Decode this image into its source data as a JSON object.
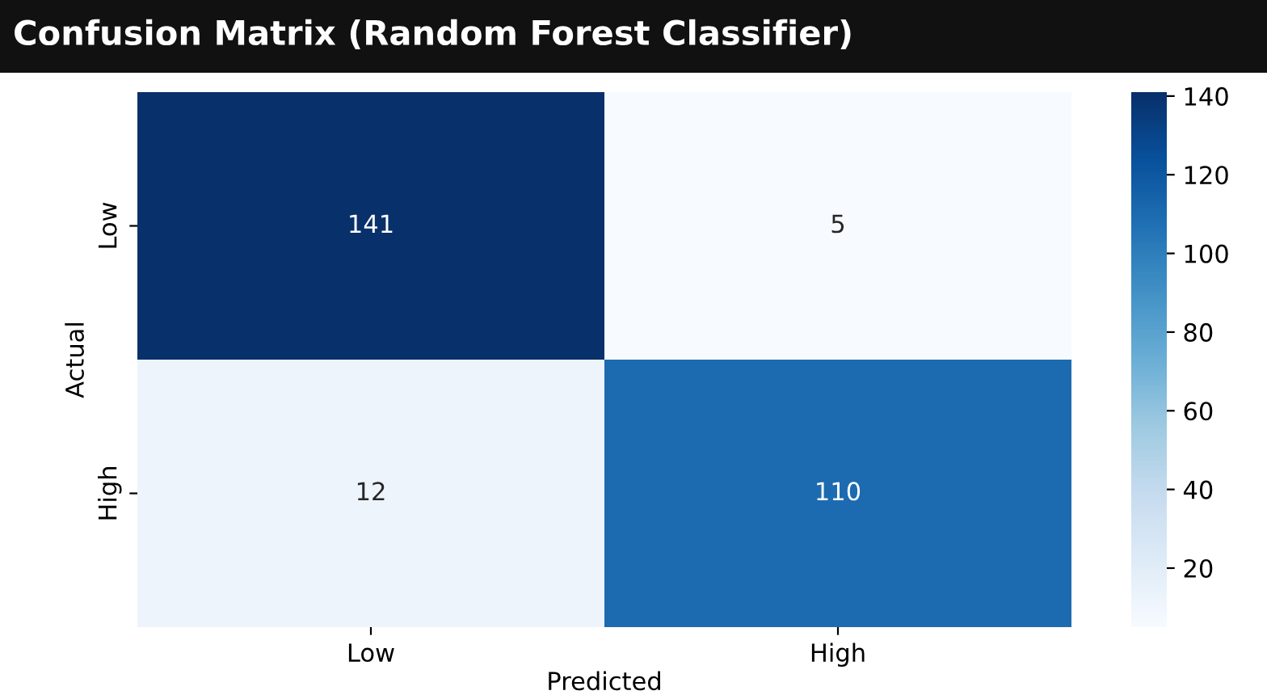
{
  "chart_data": {
    "type": "heatmap",
    "title": "Confusion Matrix (Random Forest Classifier)",
    "xlabel": "Predicted",
    "ylabel": "Actual",
    "categories": [
      "Low",
      "High"
    ],
    "y_categories": [
      "Low",
      "High"
    ],
    "cells": [
      [
        141,
        5
      ],
      [
        12,
        110
      ]
    ],
    "clim": [
      5,
      141
    ],
    "cticks": [
      20,
      40,
      60,
      80,
      100,
      120,
      140
    ],
    "data_labels": true
  }
}
